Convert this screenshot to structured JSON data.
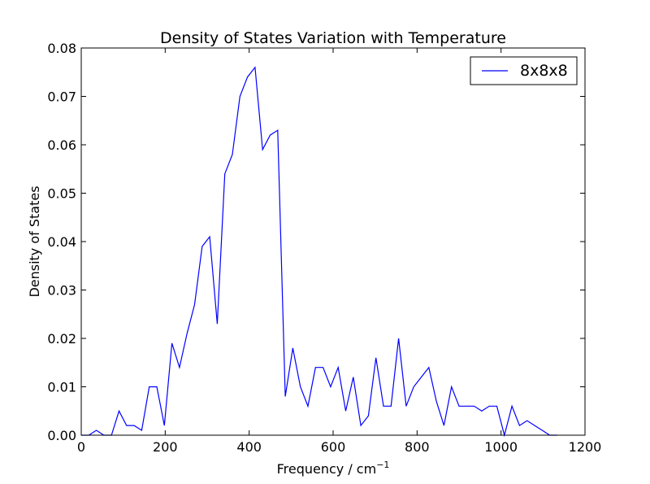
{
  "chart_data": {
    "type": "line",
    "title": "Density of States Variation with Temperature",
    "xlabel": "Frequency / cm",
    "xlabel_exponent": "−1",
    "ylabel": "Density of States",
    "xlim": [
      0,
      1200
    ],
    "ylim": [
      0,
      0.08
    ],
    "x_ticks": [
      0,
      200,
      400,
      600,
      800,
      1000,
      1200
    ],
    "x_tick_labels": [
      "0",
      "200",
      "400",
      "600",
      "800",
      "1000",
      "1200"
    ],
    "y_ticks": [
      0,
      0.01,
      0.02,
      0.03,
      0.04,
      0.05,
      0.06,
      0.07,
      0.08
    ],
    "y_tick_labels": [
      "0.00",
      "0.01",
      "0.02",
      "0.03",
      "0.04",
      "0.05",
      "0.06",
      "0.07",
      "0.08"
    ],
    "grid": false,
    "legend_position": "top-right",
    "series": [
      {
        "name": "8x8x8",
        "color": "#0000ff",
        "x": [
          0,
          18,
          36,
          54,
          72,
          90,
          108,
          126,
          144,
          162,
          180,
          198,
          216,
          234,
          252,
          270,
          288,
          306,
          324,
          342,
          360,
          378,
          396,
          414,
          432,
          450,
          468,
          486,
          504,
          522,
          540,
          558,
          576,
          594,
          612,
          630,
          648,
          666,
          684,
          702,
          720,
          738,
          756,
          774,
          792,
          810,
          828,
          846,
          864,
          882,
          900,
          918,
          936,
          954,
          972,
          990,
          1008,
          1026,
          1044,
          1062,
          1080,
          1098,
          1116,
          1134
        ],
        "y": [
          0,
          0,
          0.001,
          0,
          0,
          0.005,
          0.002,
          0.002,
          0.001,
          0.01,
          0.01,
          0.002,
          0.019,
          0.014,
          0.021,
          0.027,
          0.039,
          0.041,
          0.023,
          0.054,
          0.058,
          0.07,
          0.074,
          0.076,
          0.059,
          0.062,
          0.063,
          0.008,
          0.018,
          0.01,
          0.006,
          0.014,
          0.014,
          0.01,
          0.014,
          0.005,
          0.012,
          0.002,
          0.004,
          0.016,
          0.006,
          0.006,
          0.02,
          0.006,
          0.01,
          0.012,
          0.014,
          0.007,
          0.002,
          0.01,
          0.006,
          0.006,
          0.006,
          0.005,
          0.006,
          0.006,
          0,
          0.006,
          0.002,
          0.003,
          0.002,
          0.001,
          0,
          0
        ]
      }
    ]
  }
}
